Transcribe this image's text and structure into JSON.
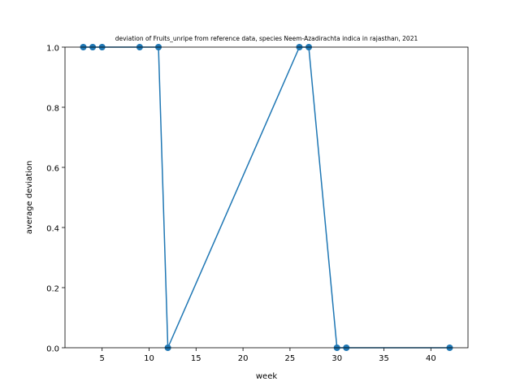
{
  "chart_data": {
    "type": "line",
    "title": "deviation of Fruits_unripe from reference data, species Neem-Azadirachta indica in rajasthan, 2021",
    "xlabel": "week",
    "ylabel": "average deviation",
    "xlim": [
      1.05,
      43.95
    ],
    "ylim": [
      0,
      1
    ],
    "xticks": [
      5,
      10,
      15,
      20,
      25,
      30,
      35,
      40
    ],
    "yticks": [
      0.0,
      0.2,
      0.4,
      0.6,
      0.8,
      1.0
    ],
    "xtick_labels": [
      "5",
      "10",
      "15",
      "20",
      "25",
      "30",
      "35",
      "40"
    ],
    "ytick_labels": [
      "0.0",
      "0.2",
      "0.4",
      "0.6",
      "0.8",
      "1.0"
    ],
    "grid": false,
    "series": [
      {
        "color": "#1f77b4",
        "x": [
          3,
          4,
          5,
          9,
          11,
          12,
          26,
          27,
          30,
          31,
          42
        ],
        "y": [
          1,
          1,
          1,
          1,
          1,
          0,
          1,
          1,
          0,
          0,
          0
        ]
      }
    ]
  }
}
